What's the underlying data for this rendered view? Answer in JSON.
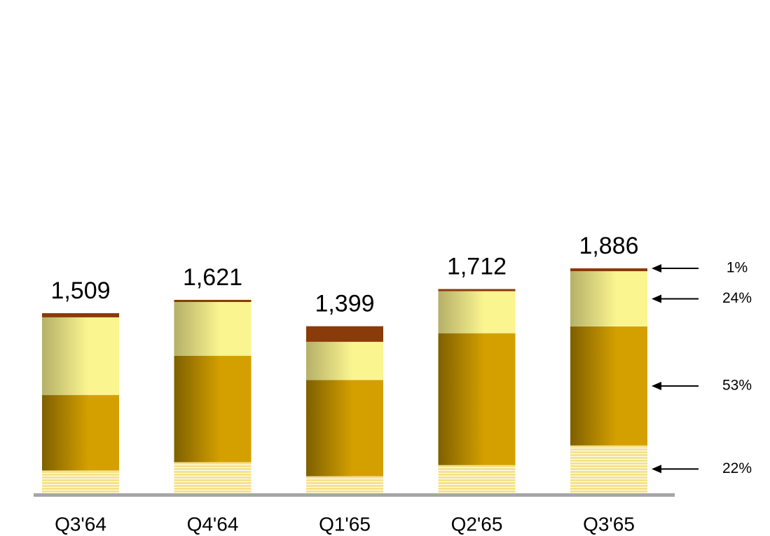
{
  "chart_data": {
    "type": "stacked_bar",
    "categories": [
      "Q3'64",
      "Q4'64",
      "Q1'65",
      "Q2'65",
      "Q3'65"
    ],
    "series": [
      {
        "color": "#f5e28a",
        "values": [
          185,
          255,
          137,
          231,
          396
        ]
      },
      {
        "color": "#d4a000",
        "values": [
          636,
          896,
          810,
          1109,
          1001
        ]
      },
      {
        "color": "#fbf590",
        "values": [
          653,
          452,
          321,
          354,
          465
        ]
      },
      {
        "color": "#8b3a0a",
        "values": [
          35,
          18,
          131,
          18,
          24
        ]
      }
    ],
    "totals": [
      1509,
      1621,
      1399,
      1712,
      1886
    ],
    "total_labels": [
      "1,509",
      "1,621",
      "1,399",
      "1,712",
      "1,886"
    ],
    "annotations": {
      "values": [
        22,
        53,
        24,
        1
      ],
      "value_labels": [
        "22%",
        "53%",
        "24%",
        "1%"
      ]
    }
  }
}
